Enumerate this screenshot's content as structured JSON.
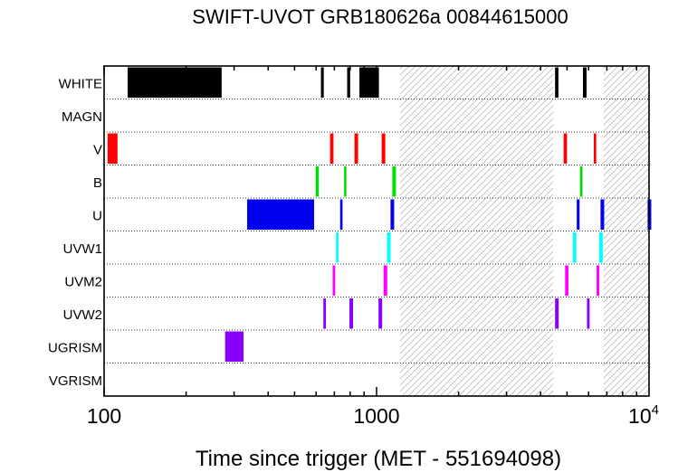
{
  "chart_data": {
    "type": "timeline",
    "title": "SWIFT-UVOT GRB180626a 00844615000",
    "xlabel": "Time since trigger (MET - 551694098)",
    "x_scale": "log",
    "xlim": [
      100,
      10000
    ],
    "x_ticks": [
      {
        "value": 100,
        "label": "100"
      },
      {
        "value": 1000,
        "label": "1000"
      },
      {
        "value": 10000,
        "label": "10",
        "exp": "4"
      }
    ],
    "grid": "dotted horizontal row separators",
    "gaps": [
      [
        1220,
        4450
      ],
      [
        6800,
        10000
      ]
    ],
    "rows": [
      {
        "name": "WHITE",
        "color": "#000000",
        "intervals": [
          [
            122,
            270
          ],
          [
            625,
            640
          ],
          [
            780,
            800
          ],
          [
            865,
            1020
          ],
          [
            4520,
            4650
          ],
          [
            5720,
            5900
          ]
        ]
      },
      {
        "name": "MAGN",
        "color": "#000000",
        "intervals": []
      },
      {
        "name": "V",
        "color": "#ff0000",
        "intervals": [
          [
            103,
            112
          ],
          [
            675,
            695
          ],
          [
            835,
            850
          ],
          [
            1055,
            1065
          ],
          [
            4860,
            5000
          ],
          [
            6270,
            6400
          ]
        ]
      },
      {
        "name": "B",
        "color": "#00dd00",
        "intervals": [
          [
            598,
            614
          ],
          [
            760,
            775
          ],
          [
            1150,
            1170
          ],
          [
            5580,
            5700
          ]
        ]
      },
      {
        "name": "U",
        "color": "#0000ee",
        "intervals": [
          [
            335,
            590
          ],
          [
            735,
            750
          ],
          [
            1135,
            1150
          ],
          [
            5430,
            5560
          ],
          [
            6720,
            6760
          ],
          [
            10070,
            10130
          ]
        ]
      },
      {
        "name": "UVW1",
        "color": "#00ffff",
        "intervals": [
          [
            710,
            725
          ],
          [
            1100,
            1118
          ],
          [
            5250,
            5410
          ],
          [
            6600,
            6720
          ]
        ]
      },
      {
        "name": "UVM2",
        "color": "#ff00ff",
        "intervals": [
          [
            690,
            705
          ],
          [
            1070,
            1085
          ],
          [
            4920,
            5060
          ],
          [
            6420,
            6570
          ]
        ]
      },
      {
        "name": "UVW2",
        "color": "#8800ff",
        "intervals": [
          [
            638,
            652
          ],
          [
            800,
            815
          ],
          [
            1025,
            1040
          ],
          [
            4520,
            4660
          ],
          [
            5920,
            6050
          ]
        ]
      },
      {
        "name": "UGRISM",
        "color": "#8800ff",
        "intervals": [
          [
            278,
            325
          ]
        ]
      },
      {
        "name": "VGRISM",
        "color": "#000000",
        "intervals": []
      }
    ]
  }
}
